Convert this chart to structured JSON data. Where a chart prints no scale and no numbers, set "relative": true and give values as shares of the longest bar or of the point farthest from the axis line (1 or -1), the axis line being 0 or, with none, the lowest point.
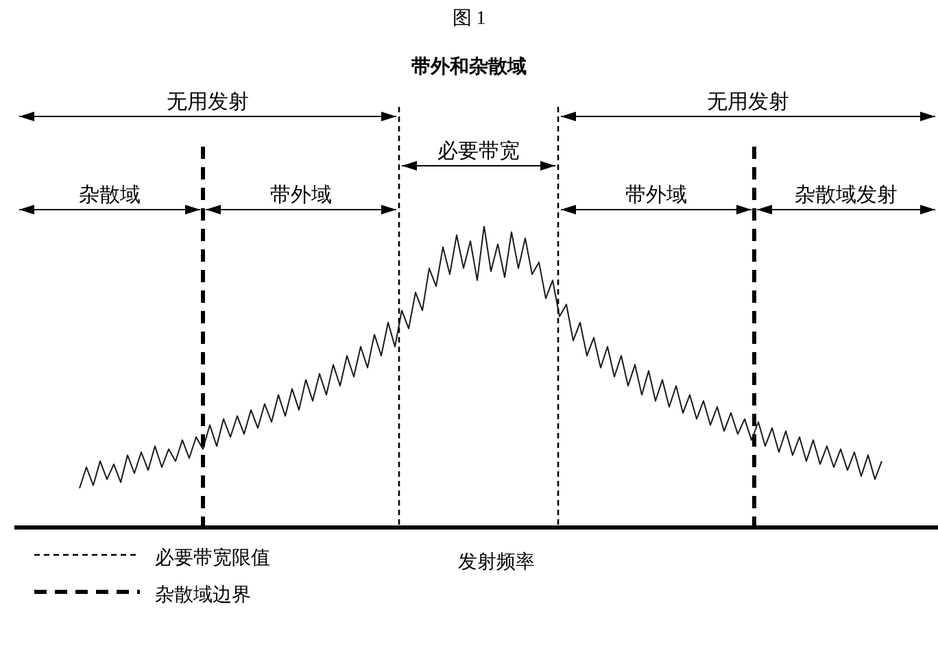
{
  "chart_data": {
    "type": "line",
    "title": "带外和杂散域",
    "xlabel": "发射频率",
    "annotations": [
      "图 1",
      "无用发射",
      "无用发射",
      "必要带宽",
      "杂散域",
      "带外域",
      "带外域",
      "杂散域发射",
      "必要带宽限值",
      "杂散域边界"
    ],
    "relative": true,
    "marker": "none",
    "color": "#1a1a1a",
    "categories": [
      null,
      null,
      null,
      null,
      null,
      null,
      null,
      null,
      null,
      null,
      null,
      null,
      null,
      null,
      null,
      null,
      null,
      null,
      null,
      null,
      null,
      null,
      null,
      null,
      null,
      null,
      null,
      null,
      null,
      null,
      null,
      null,
      null,
      null,
      null,
      null,
      null,
      null,
      null,
      null,
      null,
      null,
      null,
      null,
      null,
      null,
      null,
      null,
      null,
      null,
      null,
      null,
      null,
      null,
      null,
      null,
      null,
      null,
      null,
      null,
      null,
      null,
      null,
      null,
      null,
      null,
      null,
      null,
      null,
      null,
      null,
      null,
      null,
      null,
      null,
      null,
      null,
      null,
      null,
      null,
      null,
      null,
      null,
      null,
      null,
      null,
      null,
      null,
      null,
      null,
      null,
      null,
      null,
      null,
      null,
      null,
      null,
      null,
      null,
      null,
      null,
      null,
      null,
      null,
      null,
      null,
      null,
      null,
      null,
      null,
      null,
      null,
      null,
      null,
      null,
      null,
      null,
      null
    ],
    "values": [
      0.13,
      0.2,
      0.14,
      0.22,
      0.16,
      0.21,
      0.15,
      0.24,
      0.18,
      0.25,
      0.19,
      0.27,
      0.2,
      0.26,
      0.22,
      0.29,
      0.23,
      0.3,
      0.26,
      0.34,
      0.27,
      0.36,
      0.3,
      0.37,
      0.31,
      0.39,
      0.33,
      0.41,
      0.35,
      0.44,
      0.37,
      0.46,
      0.39,
      0.49,
      0.42,
      0.51,
      0.44,
      0.54,
      0.47,
      0.57,
      0.5,
      0.6,
      0.53,
      0.64,
      0.57,
      0.68,
      0.6,
      0.72,
      0.66,
      0.78,
      0.72,
      0.86,
      0.8,
      0.93,
      0.84,
      0.97,
      0.86,
      0.95,
      0.82,
      1.0,
      0.85,
      0.94,
      0.83,
      0.98,
      0.86,
      0.96,
      0.84,
      0.88,
      0.76,
      0.82,
      0.7,
      0.74,
      0.62,
      0.68,
      0.57,
      0.63,
      0.53,
      0.6,
      0.5,
      0.57,
      0.47,
      0.54,
      0.44,
      0.52,
      0.42,
      0.49,
      0.4,
      0.47,
      0.38,
      0.44,
      0.36,
      0.42,
      0.34,
      0.4,
      0.32,
      0.38,
      0.31,
      0.36,
      0.29,
      0.35,
      0.27,
      0.33,
      0.25,
      0.32,
      0.24,
      0.3,
      0.22,
      0.29,
      0.21,
      0.27,
      0.2,
      0.26,
      0.19,
      0.25,
      0.17,
      0.24,
      0.16,
      0.22
    ]
  }
}
